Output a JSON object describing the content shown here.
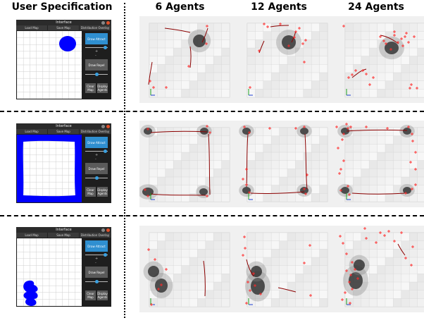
{
  "headers": {
    "user_spec": "User Specification",
    "agents_6": "6 Agents",
    "agents_12": "12 Agents",
    "agents_24": "24 Agents"
  },
  "interface": {
    "title": "Interface",
    "tabs": [
      "Load Map",
      "Save Map",
      "Distribution Overlay"
    ],
    "buttons": {
      "draw_attract": "Draw Attract",
      "draw_repel": "Draw Repel",
      "clear_map": "Clear Map",
      "display_agents": "Display Agents"
    },
    "slider_labels": [
      "+",
      "-"
    ]
  },
  "colors": {
    "spec_blue": "#0000ff",
    "agent_red": "#ff2a2a",
    "trail": "#8b0000",
    "button_blue": "#2f8fd0"
  },
  "rows": [
    {
      "spec": "attract-circle-top-right"
    },
    {
      "spec": "attract-border-perimeter"
    },
    {
      "spec": "attract-blobs-left"
    }
  ]
}
